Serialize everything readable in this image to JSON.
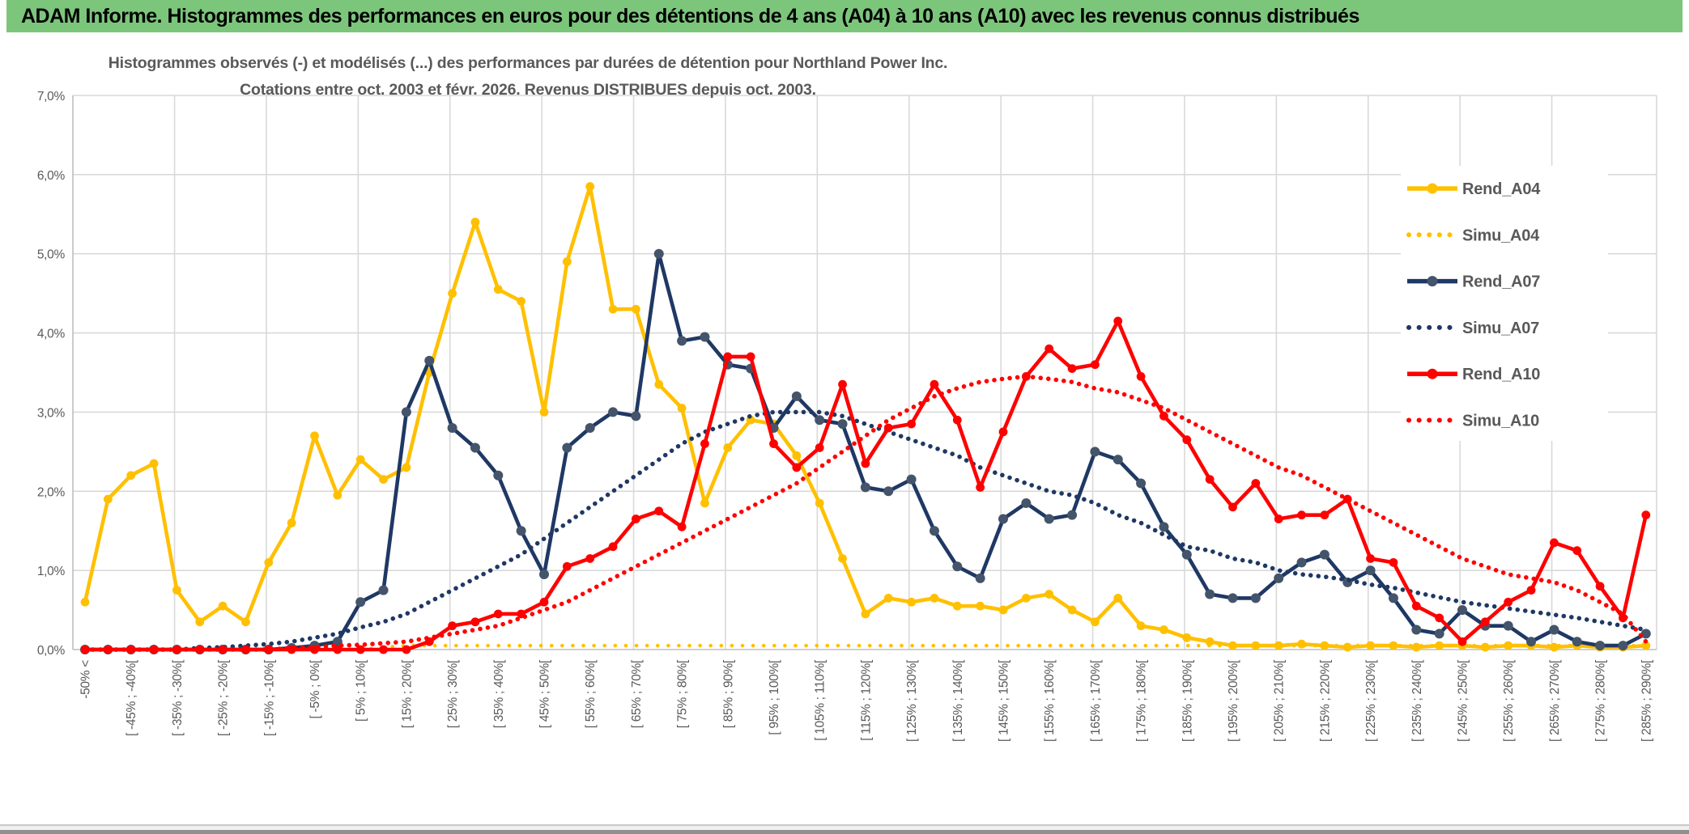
{
  "header": {
    "title": "ADAM Informe. Histogrammes des performances en euros pour des détentions de 4 ans (A04) à 10 ans (A10) avec les revenus connus distribués"
  },
  "accent_color": "#FFC000",
  "header_color": "#7CC67C",
  "chart_data": {
    "type": "line",
    "title_line1": "Histogrammes observés (-) et modélisés (...) des performances par durées de détention pour Northland Power Inc.",
    "title_line2": "Cotations entre oct. 2003 et févr. 2026. Revenus DISTRIBUES depuis oct. 2003.",
    "ylim": [
      0,
      7
    ],
    "ytick_labels": [
      "0,0%",
      "1,0%",
      "2,0%",
      "3,0%",
      "4,0%",
      "5,0%",
      "6,0%",
      "7,0%"
    ],
    "grid_color": "#D9D9D9",
    "axis_color": "#BFBFBF",
    "legend_position": "right",
    "categories": [
      "-50% <",
      "",
      "[ -45% ; -40%[",
      "",
      "[ -35% ; -30%[",
      "",
      "[ -25% ; -20%[",
      "",
      "[ -15% ; -10%[",
      "",
      "[ -5% ; 0%[",
      "",
      "[ 5% ; 10%[",
      "",
      "[ 15% ; 20%[",
      "",
      "[ 25% ; 30%[",
      "",
      "[ 35% ; 40%[",
      "",
      "[ 45% ; 50%[",
      "",
      "[ 55% ; 60%[",
      "",
      "[ 65% ; 70%[",
      "",
      "[ 75% ; 80%[",
      "",
      "[ 85% ; 90%[",
      "",
      "[ 95% ; 100%[",
      "",
      "[ 105% ; 110%[",
      "",
      "[ 115% ; 120%[",
      "",
      "[ 125% ; 130%[",
      "",
      "[ 135% ; 140%[",
      "",
      "[ 145% ; 150%[",
      "",
      "[ 155% ; 160%[",
      "",
      "[ 165% ; 170%[",
      "",
      "[ 175% ; 180%[",
      "",
      "[ 185% ; 190%[",
      "",
      "[ 195% ; 200%[",
      "",
      "[ 205% ; 210%[",
      "",
      "[ 215% ; 220%[",
      "",
      "[ 225% ; 230%[",
      "",
      "[ 235% ; 240%[",
      "",
      "[ 245% ; 250%[",
      "",
      "[ 255% ; 260%[",
      "",
      "[ 265% ; 270%[",
      "",
      "[ 275% ; 280%[",
      "",
      "[ 285% ; 290%["
    ],
    "series": [
      {
        "name": "Rend_A04",
        "style": "solid",
        "color": "#FFC000",
        "marker_color": "#FFC000",
        "values": [
          0.6,
          1.9,
          2.2,
          2.35,
          0.75,
          0.35,
          0.55,
          0.35,
          1.1,
          1.6,
          2.7,
          1.95,
          2.4,
          2.15,
          2.3,
          3.5,
          4.5,
          5.4,
          4.55,
          4.4,
          3.0,
          4.9,
          5.85,
          4.3,
          4.3,
          3.35,
          3.05,
          1.85,
          2.55,
          2.9,
          2.85,
          2.45,
          1.85,
          1.15,
          0.45,
          0.65,
          0.6,
          0.65,
          0.55,
          0.55,
          0.5,
          0.65,
          0.7,
          0.5,
          0.35,
          0.65,
          0.3,
          0.25,
          0.15,
          0.1,
          0.05,
          0.05,
          0.05,
          0.07,
          0.05,
          0.03,
          0.05,
          0.05,
          0.03,
          0.05,
          0.05,
          0.03,
          0.05,
          0.05,
          0.03,
          0.05,
          0.03,
          0.03,
          0.05
        ]
      },
      {
        "name": "Simu_A04",
        "style": "dotted",
        "color": "#FFC000",
        "dot_size": 4.5,
        "dot_gap": 13,
        "values": [
          0,
          0,
          0,
          0,
          0,
          0,
          0,
          0,
          0,
          0,
          0,
          0,
          0,
          0.03,
          0.05,
          0.05,
          0.05,
          0.05,
          0.05,
          0.05,
          0.05,
          0.05,
          0.05,
          0.05,
          0.05,
          0.05,
          0.05,
          0.05,
          0.05,
          0.05,
          0.05,
          0.05,
          0.05,
          0.05,
          0.05,
          0.05,
          0.05,
          0.05,
          0.05,
          0.05,
          0.05,
          0.05,
          0.05,
          0.05,
          0.05,
          0.05,
          0.05,
          0.05,
          0.05,
          0.05,
          0.05,
          0.05,
          0.05,
          0.05,
          0.05,
          0.05,
          0.05,
          0.05,
          0.05,
          0.05,
          0.05,
          0.05,
          0.05,
          0.05,
          0.05,
          0.05,
          0.05,
          0.05,
          0.05
        ]
      },
      {
        "name": "Rend_A07",
        "style": "solid",
        "color": "#1F3864",
        "marker_color": "#44546A",
        "values": [
          0,
          0,
          0,
          0,
          0,
          0,
          0,
          0,
          0,
          0.02,
          0.05,
          0.1,
          0.6,
          0.75,
          3.0,
          3.65,
          2.8,
          2.55,
          2.2,
          1.5,
          0.95,
          2.55,
          2.8,
          3.0,
          2.95,
          5.0,
          3.9,
          3.95,
          3.6,
          3.55,
          2.8,
          3.2,
          2.9,
          2.85,
          2.05,
          2.0,
          2.15,
          1.5,
          1.05,
          0.9,
          1.65,
          1.85,
          1.65,
          1.7,
          2.5,
          2.4,
          2.1,
          1.55,
          1.2,
          0.7,
          0.65,
          0.65,
          0.9,
          1.1,
          1.2,
          0.85,
          1.0,
          0.65,
          0.25,
          0.2,
          0.5,
          0.3,
          0.3,
          0.1,
          0.25,
          0.1,
          0.05,
          0.05,
          0.2
        ]
      },
      {
        "name": "Simu_A07",
        "style": "dotted",
        "color": "#1F3864",
        "dot_size": 5.5,
        "dot_gap": 9.5,
        "values": [
          0,
          0,
          0,
          0,
          0,
          0.02,
          0.03,
          0.05,
          0.07,
          0.1,
          0.15,
          0.2,
          0.28,
          0.35,
          0.45,
          0.6,
          0.75,
          0.9,
          1.05,
          1.2,
          1.4,
          1.6,
          1.8,
          2.0,
          2.2,
          2.4,
          2.6,
          2.75,
          2.85,
          2.95,
          3.0,
          3.0,
          3.0,
          2.95,
          2.85,
          2.75,
          2.65,
          2.55,
          2.45,
          2.3,
          2.2,
          2.1,
          2.0,
          1.95,
          1.85,
          1.7,
          1.6,
          1.45,
          1.3,
          1.25,
          1.15,
          1.1,
          1.0,
          0.95,
          0.92,
          0.88,
          0.82,
          0.78,
          0.72,
          0.66,
          0.6,
          0.56,
          0.52,
          0.48,
          0.44,
          0.4,
          0.35,
          0.3,
          0.25
        ]
      },
      {
        "name": "Rend_A10",
        "style": "solid",
        "color": "#FF0000",
        "marker_color": "#FF0000",
        "values": [
          0,
          0,
          0,
          0,
          0,
          0,
          0,
          0,
          0,
          0,
          0,
          0,
          0,
          0,
          0,
          0.1,
          0.3,
          0.35,
          0.45,
          0.45,
          0.6,
          1.05,
          1.15,
          1.3,
          1.65,
          1.75,
          1.55,
          2.6,
          3.7,
          3.7,
          2.6,
          2.3,
          2.55,
          3.35,
          2.35,
          2.8,
          2.85,
          3.35,
          2.9,
          2.05,
          2.75,
          3.45,
          3.8,
          3.55,
          3.6,
          4.15,
          3.45,
          2.95,
          2.65,
          2.15,
          1.8,
          2.1,
          1.65,
          1.7,
          1.7,
          1.9,
          1.15,
          1.1,
          0.55,
          0.4,
          0.1,
          0.35,
          0.6,
          0.75,
          1.35,
          1.25,
          0.8,
          0.4,
          1.7
        ]
      },
      {
        "name": "Simu_A10",
        "style": "dotted",
        "color": "#FF0000",
        "dot_size": 5.5,
        "dot_gap": 9.5,
        "values": [
          0,
          0,
          0,
          0,
          0,
          0,
          0,
          0,
          0,
          0.02,
          0.03,
          0.05,
          0.06,
          0.08,
          0.1,
          0.15,
          0.2,
          0.25,
          0.3,
          0.4,
          0.5,
          0.6,
          0.75,
          0.9,
          1.05,
          1.2,
          1.35,
          1.5,
          1.65,
          1.8,
          1.95,
          2.1,
          2.3,
          2.5,
          2.7,
          2.9,
          3.05,
          3.2,
          3.3,
          3.38,
          3.42,
          3.45,
          3.42,
          3.38,
          3.3,
          3.25,
          3.15,
          3.05,
          2.9,
          2.75,
          2.6,
          2.45,
          2.3,
          2.2,
          2.05,
          1.9,
          1.75,
          1.6,
          1.45,
          1.3,
          1.15,
          1.05,
          0.95,
          0.9,
          0.85,
          0.75,
          0.6,
          0.45,
          0.1
        ]
      }
    ]
  }
}
